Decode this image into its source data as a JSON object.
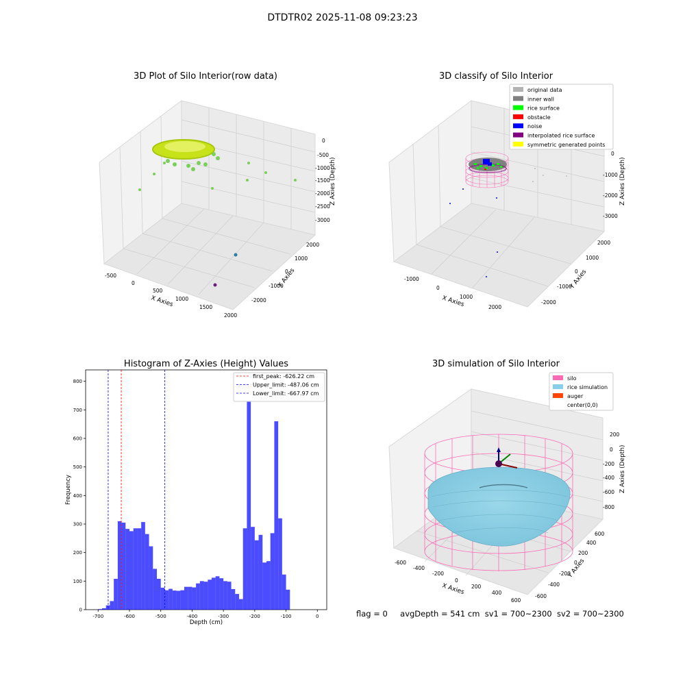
{
  "suptitle": "DTDTR02 2025-11-08 09:23:23",
  "footer": {
    "flag": "flag = 0",
    "avg_depth": "avgDepth = 541 cm",
    "sv1": "sv1 = 700~2300",
    "sv2": "sv2 = 700~2300"
  },
  "chart_data": [
    {
      "type": "scatter3d",
      "title": "3D Plot of Silo Interior(row data)",
      "xlabel": "X Axies",
      "ylabel": "Y Axies",
      "zlabel": "Z Axies (Depth)",
      "x_ticks": [
        "-500",
        "0",
        "500",
        "1000",
        "1500",
        "2000"
      ],
      "y_ticks": [
        "-2000",
        "-1000",
        "0",
        "1000",
        "2000"
      ],
      "z_ticks": [
        "0",
        "-500",
        "-1000",
        "-1500",
        "-2000",
        "-2500",
        "-3000"
      ],
      "grid": true,
      "colors": {
        "surface": "#c8e21a",
        "scatter": "#7ccf5a",
        "far_points": "#2a7fa0",
        "low_point": "#6a1f7a"
      }
    },
    {
      "type": "scatter3d",
      "title": "3D classify of Silo Interior",
      "xlabel": "X Axies",
      "ylabel": "Y Axies",
      "zlabel": "Z Axies (Depth)",
      "x_ticks": [
        "-1000",
        "0",
        "1000",
        "2000"
      ],
      "y_ticks": [
        "-2000",
        "-1000",
        "0",
        "1000",
        "2000"
      ],
      "z_ticks": [
        "0",
        "-1000",
        "-2000",
        "-3000"
      ],
      "grid": true,
      "legend_position": "top-right",
      "legend": [
        {
          "label": "original data",
          "color": "#b3b3b3"
        },
        {
          "label": "inner wall",
          "color": "#808080"
        },
        {
          "label": "rice surface",
          "color": "#00ff00"
        },
        {
          "label": "obstacle",
          "color": "#ff0000"
        },
        {
          "label": "noise",
          "color": "#0000ff"
        },
        {
          "label": "interpolated rice surface",
          "color": "#800080"
        },
        {
          "label": "symmetric generated points",
          "color": "#ffff00"
        }
      ]
    },
    {
      "type": "histogram",
      "title": "Histogram of Z-Axies (Height) Values",
      "xlabel": "Depth (cm)",
      "ylabel": "Frequency",
      "xlim": [
        -740,
        30
      ],
      "ylim": [
        0,
        840
      ],
      "x_ticks": [
        -700,
        -600,
        -500,
        -400,
        -300,
        -200,
        -100,
        0
      ],
      "y_ticks": [
        0,
        100,
        200,
        300,
        400,
        500,
        600,
        700,
        800
      ],
      "bar_color": "#0000ff",
      "bin_edges_start": -700,
      "bin_width": 12.5,
      "values": [
        2,
        5,
        15,
        30,
        108,
        310,
        305,
        283,
        275,
        285,
        285,
        307,
        265,
        222,
        143,
        108,
        77,
        68,
        73,
        67,
        66,
        68,
        80,
        80,
        78,
        92,
        100,
        98,
        105,
        112,
        117,
        110,
        100,
        98,
        72,
        55,
        37,
        285,
        800,
        290,
        243,
        262,
        165,
        170,
        268,
        660,
        320,
        123,
        70
      ],
      "lines": [
        {
          "label": "first_peak: -626.22 cm",
          "x": -626.22,
          "color": "#ff0000"
        },
        {
          "label": "Upper_limit: -487.06 cm",
          "x": -487.06,
          "color": "#0000ff"
        },
        {
          "label": "Lower_limit: -667.97 cm",
          "x": -667.97,
          "color": "#0000ff"
        }
      ],
      "legend_position": "top-right"
    },
    {
      "type": "surface3d",
      "title": "3D simulation of Silo Interior",
      "xlabel": "X Axies",
      "ylabel": "Y Axies",
      "zlabel": "Z Axies (Depth)",
      "x_ticks": [
        "-600",
        "-400",
        "-200",
        "0",
        "200",
        "400",
        "600"
      ],
      "y_ticks": [
        "-600",
        "-400",
        "-200",
        "0",
        "200",
        "400",
        "600"
      ],
      "z_ticks": [
        "200",
        "0",
        "-200",
        "-400",
        "-600",
        "-800"
      ],
      "grid": true,
      "legend_position": "top-right",
      "legend": [
        {
          "label": "silo",
          "color": "#ff69b4"
        },
        {
          "label": "rice simulation",
          "color": "#87ceeb"
        },
        {
          "label": "auger",
          "color": "#ff4500"
        },
        {
          "label": "center(0,0)",
          "color": "#ffffff"
        }
      ]
    }
  ]
}
